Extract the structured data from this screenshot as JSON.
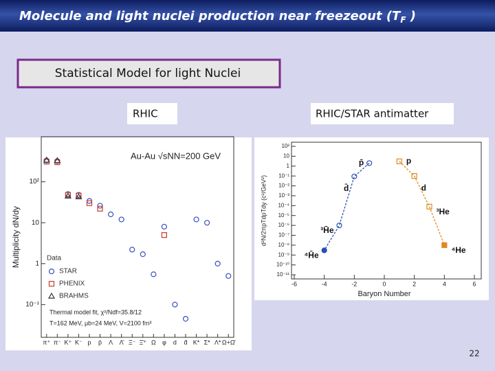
{
  "title_parts": [
    "Molecule and light nuclei production near freezeout (T",
    "F",
    " )"
  ],
  "box_title": "Statistical Model for light Nuclei",
  "labels": [
    "RHIC",
    "RHIC/STAR antimatter"
  ],
  "page_number": "22",
  "chart_data": [
    {
      "type": "scatter",
      "log_y": true,
      "ylabel": "Multiplicity dN/dy",
      "annotations": [
        "Au-Au √sNN=200 GeV",
        "Thermal model fit, χ²/Ndf=35.8/12",
        "T=162 MeV, μb=24 MeV, V=2100 fm³"
      ],
      "legend_title": "Data",
      "categories": [
        "π⁺",
        "π⁻",
        "K⁺",
        "K⁻",
        "p",
        "p̄",
        "Λ",
        "Λ̄",
        "Ξ⁻",
        "Ξ̄⁺",
        "Ω",
        "φ",
        "d",
        "d̄",
        "K*",
        "Σ*",
        "Λ*",
        "Ω+Ω̄"
      ],
      "ylim": [
        0.02,
        1000
      ],
      "yticks": [
        {
          "value": 0.1,
          "label": "10⁻¹"
        },
        1,
        10,
        {
          "value": 100,
          "label": "10²"
        }
      ],
      "series": [
        {
          "name": "STAR",
          "color": "#3a4fc0",
          "marker": "circle",
          "values": [
            330,
            320,
            50,
            48,
            34,
            26,
            16,
            12,
            2.2,
            1.7,
            0.55,
            8,
            0.1,
            0.045,
            12,
            10,
            1,
            0.5
          ]
        },
        {
          "name": "PHENIX",
          "color": "#c83a2a",
          "marker": "square",
          "values": [
            310,
            300,
            48,
            46,
            30,
            22,
            null,
            null,
            null,
            null,
            null,
            5,
            null,
            null,
            null,
            null,
            null,
            null
          ]
        },
        {
          "name": "BRAHMS",
          "color": "#333333",
          "marker": "triangle",
          "values": [
            340,
            330,
            45,
            43,
            null,
            null,
            null,
            null,
            null,
            null,
            null,
            null,
            null,
            null,
            null,
            null,
            null,
            null
          ]
        }
      ]
    },
    {
      "type": "scatter",
      "log_y": true,
      "fit_line": true,
      "xlabel": "Baryon Number",
      "ylabel": "d²N/2πpTdpTdy (c²/GeV²)",
      "xlim": [
        -6,
        6
      ],
      "xticks": [
        -6,
        -4,
        -2,
        0,
        2,
        4,
        6
      ],
      "ylim": [
        1e-11,
        100
      ],
      "yticks": [
        {
          "value": 100,
          "label": "10²"
        },
        10,
        1,
        {
          "value": 0.1,
          "label": "10⁻¹"
        },
        {
          "value": 0.01,
          "label": "10⁻²"
        },
        {
          "value": 0.001,
          "label": "10⁻³"
        },
        {
          "value": 0.0001,
          "label": "10⁻⁴"
        },
        {
          "value": 1e-05,
          "label": "10⁻⁵"
        },
        {
          "value": 1e-06,
          "label": "10⁻⁶"
        },
        {
          "value": 1e-07,
          "label": "10⁻⁷"
        },
        {
          "value": 1e-08,
          "label": "10⁻⁸"
        },
        {
          "value": 1e-09,
          "label": "10⁻⁹"
        },
        {
          "value": 1e-10,
          "label": "10⁻¹⁰"
        },
        {
          "value": 1e-11,
          "label": "10⁻¹¹"
        }
      ],
      "series": [
        {
          "color": "#2a4fb0",
          "marker": "circle",
          "x": [
            -1,
            -2,
            -3,
            -4
          ],
          "values": [
            2,
            0.09,
            1e-06,
            3e-09
          ],
          "point_labels": [
            "p̄",
            "d̄",
            "³H̄e",
            "⁴H̄e"
          ],
          "filled": [
            false,
            false,
            false,
            true
          ]
        },
        {
          "color": "#e08a1e",
          "marker": "square",
          "x": [
            1,
            2,
            3,
            4
          ],
          "values": [
            3,
            0.1,
            8e-05,
            1e-08
          ],
          "point_labels": [
            "p",
            "d",
            "³He",
            "⁴He"
          ],
          "filled": [
            false,
            false,
            false,
            true
          ]
        }
      ]
    }
  ]
}
